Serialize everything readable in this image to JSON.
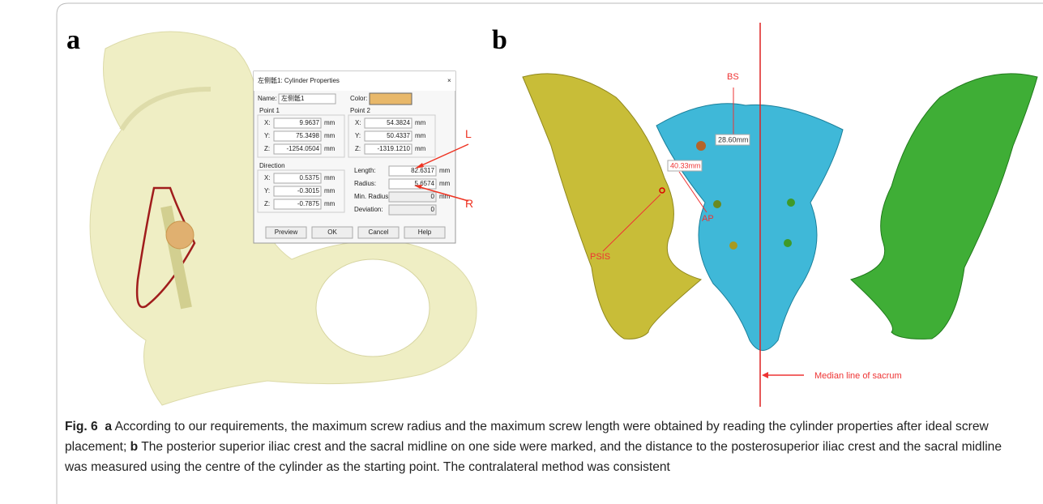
{
  "panel_a": {
    "label": "a",
    "dialog": {
      "title": "左侧骶1: Cylinder Properties",
      "close": "×",
      "name_label": "Name:",
      "name_value": "左侧骶1",
      "color_label": "Color:",
      "point1": {
        "title": "Point 1",
        "rows": [
          {
            "label": "X:",
            "value": "9.9637",
            "unit": "mm"
          },
          {
            "label": "Y:",
            "value": "75.3498",
            "unit": "mm"
          },
          {
            "label": "Z:",
            "value": "-1254.0504",
            "unit": "mm"
          }
        ]
      },
      "point2": {
        "title": "Point 2",
        "rows": [
          {
            "label": "X:",
            "value": "54.3824",
            "unit": "mm"
          },
          {
            "label": "Y:",
            "value": "50.4337",
            "unit": "mm"
          },
          {
            "label": "Z:",
            "value": "-1319.1210",
            "unit": "mm"
          }
        ]
      },
      "direction": {
        "title": "Direction",
        "rows": [
          {
            "label": "X:",
            "value": "0.5375",
            "unit": "mm"
          },
          {
            "label": "Y:",
            "value": "-0.3015",
            "unit": "mm"
          },
          {
            "label": "Z:",
            "value": "-0.7875",
            "unit": "mm"
          }
        ]
      },
      "measures": [
        {
          "label": "Length:",
          "value": "82.6317",
          "unit": "mm"
        },
        {
          "label": "Radius:",
          "value": "5.6574",
          "unit": "mm"
        },
        {
          "label": "Min. Radius:",
          "value": "0",
          "unit": "mm"
        },
        {
          "label": "Deviation:",
          "value": "0"
        }
      ],
      "buttons": [
        "Preview",
        "OK",
        "Cancel",
        "Help"
      ]
    },
    "annotations": [
      "L",
      "R"
    ]
  },
  "panel_b": {
    "label": "b",
    "annotations": {
      "bs": "BS",
      "bs_distance": "28.60mm",
      "psis_distance": "40.33mm",
      "ap": "AP",
      "psis": "PSIS",
      "median": "Median line of sacrum"
    }
  },
  "caption": {
    "figure_label": "Fig. 6",
    "part_a_label": "a",
    "part_a_text": "According to our requirements, the maximum screw radius and the maximum screw length were obtained by reading the cylinder properties after ideal screw placement;",
    "part_b_label": "b",
    "part_b_text": "The posterior superior iliac crest and the sacral midline on one side were marked, and the distance to the posterosuperior iliac crest and the sacral midline was measured using the centre of the cylinder as the starting point. The contralateral method was consistent"
  }
}
